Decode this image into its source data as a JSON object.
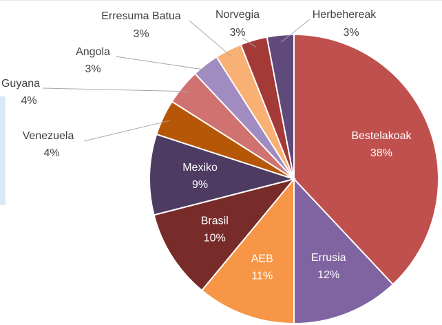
{
  "chart_data": {
    "type": "pie",
    "categories": [
      "Bestelakoak",
      "Errusia",
      "AEB",
      "Brasil",
      "Mexiko",
      "Venezuela",
      "Guyana",
      "Angola",
      "Erresuma Batua",
      "Norvegia",
      "Herbehereak"
    ],
    "values": [
      38,
      12,
      11,
      10,
      9,
      4,
      4,
      3,
      3,
      3,
      3
    ],
    "value_labels": [
      "38%",
      "12%",
      "11%",
      "10%",
      "9%",
      "4%",
      "4%",
      "3%",
      "3%",
      "3%",
      "3%"
    ],
    "colors": [
      "#c0504d",
      "#8064a2",
      "#f79646",
      "#772c2a",
      "#4d3b62",
      "#b65708",
      "#d07270",
      "#a08cc0",
      "#f9b074",
      "#a33a38",
      "#604a7b"
    ]
  }
}
